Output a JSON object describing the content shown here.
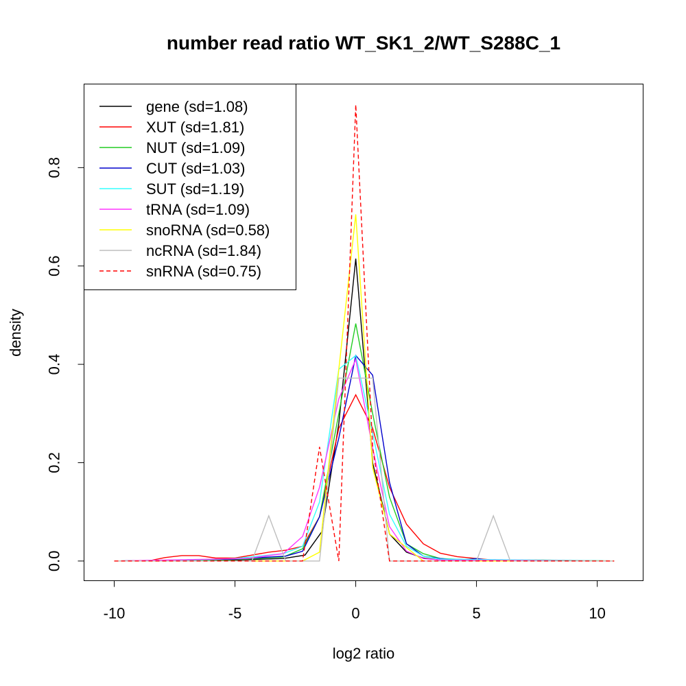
{
  "chart_data": {
    "type": "line",
    "title": "number read ratio WT_SK1_2/WT_S288C_1",
    "xlabel": "log2 ratio",
    "ylabel": "density",
    "xlim": [
      -11.25,
      11.9
    ],
    "ylim": [
      -0.04,
      0.97
    ],
    "xticks": [
      -10,
      -5,
      0,
      5,
      10
    ],
    "xtick_labels": [
      "-10",
      "-5",
      "0",
      "5",
      "10"
    ],
    "yticks": [
      0.0,
      0.2,
      0.4,
      0.6,
      0.8
    ],
    "ytick_labels": [
      "0.0",
      "0.2",
      "0.4",
      "0.6",
      "0.8"
    ],
    "grid": false,
    "legend_position": "top-left",
    "series": [
      {
        "name": "gene (sd=1.08)",
        "color": "#000000",
        "dash": "solid",
        "x": [
          -10.0,
          -5.0,
          -3.0,
          -2.1,
          -1.4,
          -0.7,
          0.0,
          0.7,
          1.4,
          2.1,
          2.8,
          3.5,
          5.0,
          10.7
        ],
        "y": [
          0.0,
          0.002,
          0.005,
          0.012,
          0.06,
          0.28,
          0.615,
          0.2,
          0.055,
          0.018,
          0.006,
          0.002,
          0.001,
          0.0
        ]
      },
      {
        "name": "XUT (sd=1.81)",
        "color": "#ff0000",
        "dash": "solid",
        "x": [
          -10.0,
          -8.6,
          -7.9,
          -7.2,
          -6.5,
          -5.8,
          -5.0,
          -4.3,
          -3.6,
          -2.9,
          -2.2,
          -1.5,
          -0.7,
          0.0,
          0.7,
          1.4,
          2.1,
          2.8,
          3.5,
          4.2,
          5.0,
          5.7,
          7.0,
          8.0,
          10.7
        ],
        "y": [
          0.0,
          0.0,
          0.007,
          0.011,
          0.011,
          0.006,
          0.006,
          0.012,
          0.018,
          0.022,
          0.03,
          0.09,
          0.27,
          0.338,
          0.27,
          0.15,
          0.075,
          0.035,
          0.016,
          0.009,
          0.005,
          0.002,
          0.001,
          0.0,
          0.0
        ]
      },
      {
        "name": "NUT (sd=1.09)",
        "color": "#22cc22",
        "dash": "solid",
        "x": [
          -10.0,
          -5.0,
          -3.0,
          -2.2,
          -1.5,
          -0.7,
          0.0,
          0.7,
          1.4,
          2.1,
          2.8,
          3.5,
          5.0,
          7.8,
          10.7
        ],
        "y": [
          0.0,
          0.003,
          0.008,
          0.025,
          0.09,
          0.3,
          0.483,
          0.3,
          0.13,
          0.035,
          0.015,
          0.005,
          0.002,
          0.002,
          0.0
        ]
      },
      {
        "name": "CUT (sd=1.03)",
        "color": "#0000cc",
        "dash": "solid",
        "x": [
          -10.0,
          -5.0,
          -2.9,
          -2.2,
          -1.5,
          -0.7,
          0.0,
          0.7,
          1.4,
          2.1,
          2.8,
          3.5,
          4.3,
          5.0,
          5.7,
          10.7
        ],
        "y": [
          0.0,
          0.004,
          0.01,
          0.02,
          0.09,
          0.25,
          0.418,
          0.378,
          0.16,
          0.035,
          0.01,
          0.005,
          0.002,
          0.005,
          0.0,
          0.0
        ]
      },
      {
        "name": "SUT (sd=1.19)",
        "color": "#33ffff",
        "dash": "solid",
        "x": [
          -10.0,
          -6.0,
          -5.0,
          -3.0,
          -2.2,
          -1.5,
          -0.7,
          0.0,
          0.7,
          1.4,
          2.1,
          2.8,
          3.5,
          10.7
        ],
        "y": [
          0.0,
          0.003,
          0.005,
          0.015,
          0.03,
          0.12,
          0.39,
          0.418,
          0.26,
          0.095,
          0.03,
          0.01,
          0.004,
          0.0
        ]
      },
      {
        "name": "tRNA (sd=1.09)",
        "color": "#ff33ff",
        "dash": "solid",
        "x": [
          -10.0,
          -4.5,
          -3.0,
          -2.2,
          -1.5,
          -0.7,
          0.0,
          0.7,
          1.4,
          2.1,
          2.8,
          3.5,
          10.7
        ],
        "y": [
          0.0,
          0.005,
          0.015,
          0.05,
          0.15,
          0.33,
          0.41,
          0.23,
          0.07,
          0.02,
          0.005,
          0.002,
          0.0
        ]
      },
      {
        "name": "snoRNA (sd=0.58)",
        "color": "#ffff00",
        "dash": "solid",
        "x": [
          -10.0,
          -2.2,
          -1.5,
          -0.7,
          0.0,
          0.7,
          1.4,
          2.8,
          10.7
        ],
        "y": [
          0.0,
          0.0,
          0.018,
          0.39,
          0.705,
          0.19,
          0.055,
          0.0,
          0.0
        ]
      },
      {
        "name": "ncRNA (sd=1.84)",
        "color": "#bebebe",
        "dash": "solid",
        "x": [
          -10.0,
          -4.3,
          -3.6,
          -2.9,
          -2.2,
          -1.5,
          -0.7,
          0.0,
          0.7,
          1.4,
          5.0,
          5.7,
          6.4,
          10.7
        ],
        "y": [
          0.0,
          0.0,
          0.092,
          0.0,
          0.0,
          0.0,
          0.372,
          0.372,
          0.372,
          0.0,
          0.0,
          0.092,
          0.0,
          0.0
        ]
      },
      {
        "name": "snRNA (sd=0.75)",
        "color": "#ff0000",
        "dash": "dashed",
        "x": [
          -10.0,
          -2.2,
          -1.5,
          -0.7,
          0.0,
          0.7,
          1.4,
          10.7
        ],
        "y": [
          0.0,
          0.0,
          0.232,
          0.0,
          0.928,
          0.232,
          0.0,
          0.0
        ]
      }
    ]
  }
}
